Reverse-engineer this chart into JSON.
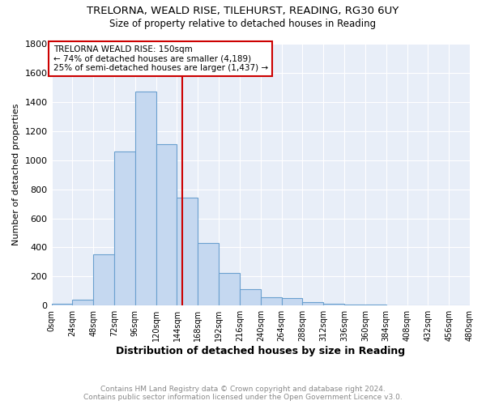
{
  "title1": "TRELORNA, WEALD RISE, TILEHURST, READING, RG30 6UY",
  "title2": "Size of property relative to detached houses in Reading",
  "xlabel": "Distribution of detached houses by size in Reading",
  "ylabel": "Number of detached properties",
  "bin_labels": [
    "0sqm",
    "24sqm",
    "48sqm",
    "72sqm",
    "96sqm",
    "120sqm",
    "144sqm",
    "168sqm",
    "192sqm",
    "216sqm",
    "240sqm",
    "264sqm",
    "288sqm",
    "312sqm",
    "336sqm",
    "360sqm",
    "384sqm",
    "408sqm",
    "432sqm",
    "456sqm",
    "480sqm"
  ],
  "bin_edges": [
    0,
    24,
    48,
    72,
    96,
    120,
    144,
    168,
    192,
    216,
    240,
    264,
    288,
    312,
    336,
    360,
    384,
    408,
    432,
    456,
    480
  ],
  "bar_heights": [
    15,
    40,
    350,
    1060,
    1470,
    1110,
    740,
    430,
    225,
    115,
    60,
    50,
    25,
    15,
    8,
    5,
    4,
    3,
    2,
    1
  ],
  "bar_color": "#c5d8f0",
  "bar_edge_color": "#6aa0cf",
  "property_size": 150,
  "property_label": "TRELORNA WEALD RISE: 150sqm",
  "annotation_line1": "← 74% of detached houses are smaller (4,189)",
  "annotation_line2": "25% of semi-detached houses are larger (1,437) →",
  "vline_color": "#cc0000",
  "box_edge_color": "#cc0000",
  "ylim": [
    0,
    1800
  ],
  "yticks": [
    0,
    200,
    400,
    600,
    800,
    1000,
    1200,
    1400,
    1600,
    1800
  ],
  "background_color": "#e8eef8",
  "grid_color": "#ffffff",
  "title1_fontsize": 9.5,
  "title2_fontsize": 8.5,
  "footer_line1": "Contains HM Land Registry data © Crown copyright and database right 2024.",
  "footer_line2": "Contains public sector information licensed under the Open Government Licence v3.0.",
  "footer_color": "#888888"
}
